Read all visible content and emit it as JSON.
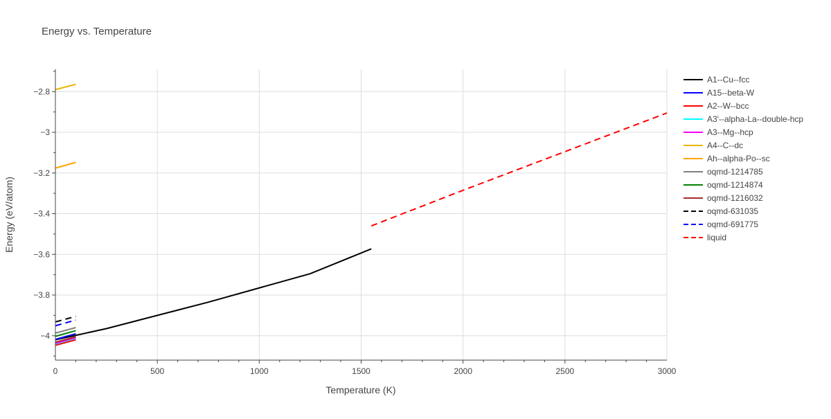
{
  "chart_data": {
    "type": "line",
    "title": "Energy vs. Temperature",
    "xlabel": "Temperature (K)",
    "ylabel": "Energy (eV/atom)",
    "xlim": [
      0,
      3000
    ],
    "ylim": [
      -4.12,
      -2.69
    ],
    "x_ticks": [
      0,
      500,
      1000,
      1500,
      2000,
      2500,
      3000
    ],
    "x_tick_labels": [
      "0",
      "500",
      "1000",
      "1500",
      "2000",
      "2500",
      "3000"
    ],
    "y_ticks": [
      -4.0,
      -3.8,
      -3.6,
      -3.4,
      -3.2,
      -3.0,
      -2.8
    ],
    "y_tick_labels": [
      "−4",
      "−3.8",
      "−3.6",
      "−3.4",
      "−3.2",
      "−3",
      "−2.8"
    ],
    "grid": true,
    "legend_position": "right",
    "series": [
      {
        "name": "A1--Cu--fcc",
        "color": "#000000",
        "dash": "solid",
        "x": [
          0,
          250,
          500,
          750,
          1000,
          1250,
          1550
        ],
        "y": [
          -4.02,
          -3.965,
          -3.9,
          -3.835,
          -3.765,
          -3.695,
          -3.573
        ]
      },
      {
        "name": "A15--beta-W",
        "color": "#0000ff",
        "dash": "solid",
        "x": [
          0,
          100
        ],
        "y": [
          -4.018,
          -3.99
        ]
      },
      {
        "name": "A2--W--bcc",
        "color": "#ff0000",
        "dash": "solid",
        "x": [
          0,
          100
        ],
        "y": [
          -4.047,
          -4.02
        ]
      },
      {
        "name": "A3'--alpha-La--double-hcp",
        "color": "#00ffff",
        "dash": "solid",
        "x": [
          0,
          100
        ],
        "y": [
          -4.04,
          -4.013
        ]
      },
      {
        "name": "A3--Mg--hcp",
        "color": "#ff00ff",
        "dash": "solid",
        "x": [
          0,
          100
        ],
        "y": [
          -4.037,
          -4.01
        ]
      },
      {
        "name": "A4--C--dc",
        "color": "#e6b800",
        "dash": "solid",
        "x": [
          0,
          100
        ],
        "y": [
          -2.79,
          -2.764
        ]
      },
      {
        "name": "Ah--alpha-Po--sc",
        "color": "#ffa500",
        "dash": "solid",
        "x": [
          0,
          100
        ],
        "y": [
          -3.176,
          -3.148
        ]
      },
      {
        "name": "oqmd-1214785",
        "color": "#808080",
        "dash": "solid",
        "x": [
          0,
          100
        ],
        "y": [
          -3.987,
          -3.96
        ]
      },
      {
        "name": "oqmd-1214874",
        "color": "#008000",
        "dash": "solid",
        "x": [
          0,
          100
        ],
        "y": [
          -4.003,
          -3.975
        ]
      },
      {
        "name": "oqmd-1216032",
        "color": "#a52a2a",
        "dash": "solid",
        "x": [
          0,
          100
        ],
        "y": [
          -4.032,
          -4.005
        ]
      },
      {
        "name": "oqmd-631035",
        "color": "#000000",
        "dash": "dash",
        "x": [
          0,
          100
        ],
        "y": [
          -3.932,
          -3.905
        ]
      },
      {
        "name": "oqmd-691775",
        "color": "#0000ff",
        "dash": "dash",
        "x": [
          0,
          100
        ],
        "y": [
          -3.951,
          -3.923
        ]
      },
      {
        "name": "liquid",
        "color": "#ff0000",
        "dash": "dash",
        "x": [
          1550,
          2000,
          2500,
          3000
        ],
        "y": [
          -3.46,
          -3.285,
          -3.095,
          -2.905
        ]
      }
    ]
  }
}
